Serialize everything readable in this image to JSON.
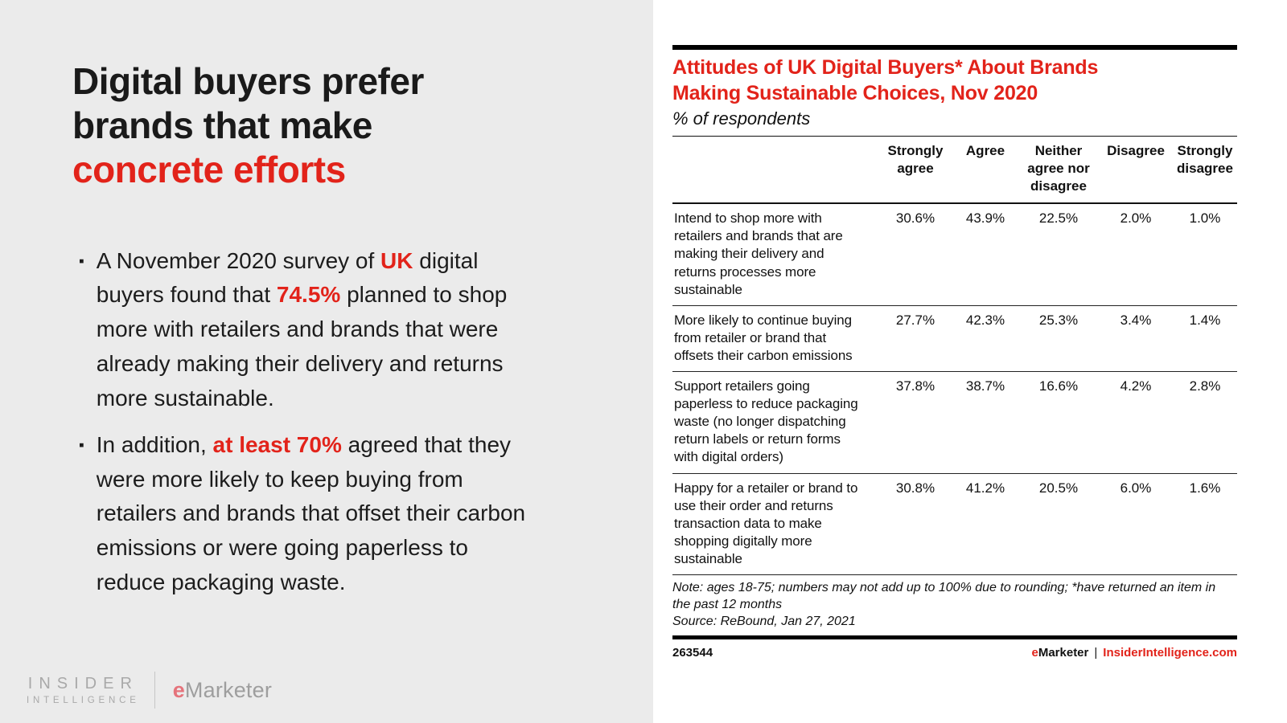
{
  "slide": {
    "title_line1": "Digital buyers prefer",
    "title_line2": "brands that make",
    "title_line3_red": "concrete efforts",
    "bullet_marker": "▪",
    "bullets": [
      {
        "segments": [
          {
            "text": "A November 2020 survey of "
          },
          {
            "text": "UK"
          },
          {
            "text": " digital buyers found that "
          },
          {
            "text": "74.5%"
          },
          {
            "text": " planned to shop more with retailers and brands that were already making their delivery and returns more sustainable."
          }
        ]
      },
      {
        "segments": [
          {
            "text": "In addition, "
          },
          {
            "text": "at least 70%"
          },
          {
            "text": " agreed that they were more likely to keep buying from retailers and brands that offset their carbon emissions or were going paperless to reduce packaging waste."
          }
        ]
      }
    ],
    "logo": {
      "insider_line1": "INSIDER",
      "insider_line2": "INTELLIGENCE",
      "emarketer_e": "e",
      "emarketer_rest": "Marketer"
    }
  },
  "exhibit": {
    "title_line1": "Attitudes of UK Digital Buyers* About Brands",
    "title_line2": "Making Sustainable Choices, Nov 2020",
    "subtitle": "% of respondents",
    "footer_id": "263544",
    "footer_brand_e": "e",
    "footer_brand_rest": "Marketer",
    "footer_sep": "|",
    "footer_site": "InsiderIntelligence.com"
  },
  "chart_data": {
    "type": "table",
    "title": "Attitudes of UK Digital Buyers* About Brands Making Sustainable Choices, Nov 2020",
    "subtitle": "% of respondents",
    "columns": [
      "Strongly agree",
      "Agree",
      "Neither agree nor disagree",
      "Disagree",
      "Strongly disagree"
    ],
    "rows": [
      {
        "label": "Intend to shop more with retailers and brands that are making their delivery and returns processes more sustainable",
        "values": [
          "30.6%",
          "43.9%",
          "22.5%",
          "2.0%",
          "1.0%"
        ]
      },
      {
        "label": "More likely to continue buying from retailer or brand that offsets their carbon emissions",
        "values": [
          "27.7%",
          "42.3%",
          "25.3%",
          "3.4%",
          "1.4%"
        ]
      },
      {
        "label": "Support retailers going paperless to reduce packaging waste (no longer dispatching return labels or return forms with digital orders)",
        "values": [
          "37.8%",
          "38.7%",
          "16.6%",
          "4.2%",
          "2.8%"
        ]
      },
      {
        "label": "Happy for a retailer or brand to use their order and returns transaction data to make shopping digitally more sustainable",
        "values": [
          "30.8%",
          "41.2%",
          "20.5%",
          "6.0%",
          "1.6%"
        ]
      }
    ],
    "note": "Note: ages 18-75; numbers may not add up to 100% due to rounding; *have returned an item in the past 12 months",
    "source": "Source: ReBound, Jan 27, 2021",
    "accent_color": "#e2231a",
    "layout": {
      "grid": "horizontal rules only",
      "value_format": "percent, 1 decimal"
    }
  }
}
